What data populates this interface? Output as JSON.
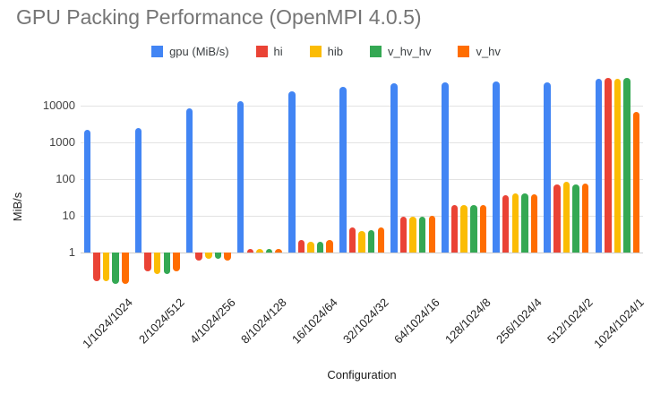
{
  "title": "GPU Packing Performance (OpenMPI 4.0.5)",
  "legend": [
    {
      "label": "gpu (MiB/s)",
      "color": "#4285F4"
    },
    {
      "label": "hi",
      "color": "#EA4335"
    },
    {
      "label": "hib",
      "color": "#FBBC04"
    },
    {
      "label": "v_hv_hv",
      "color": "#34A853"
    },
    {
      "label": "v_hv",
      "color": "#FF6D01"
    }
  ],
  "chart_data": {
    "type": "bar",
    "title": "GPU Packing Performance (OpenMPI 4.0.5)",
    "xlabel": "Configuration",
    "ylabel": "MiB/s",
    "y_scale": "log",
    "y_ticks": [
      1,
      10,
      100,
      1000,
      10000
    ],
    "ylim": [
      0.13,
      65000
    ],
    "grid": true,
    "legend_position": "top",
    "categories": [
      "1/1024/1024",
      "2/1024/512",
      "4/1024/256",
      "8/1024/128",
      "16/1024/64",
      "32/1024/32",
      "64/1024/16",
      "128/1024/8",
      "256/1024/4",
      "512/1024/2",
      "1024/1024/1"
    ],
    "series": [
      {
        "name": "gpu (MiB/s)",
        "color": "#4285F4",
        "values": [
          2200,
          2500,
          8500,
          13500,
          25000,
          33000,
          42000,
          45000,
          47000,
          45000,
          54000
        ]
      },
      {
        "name": "hi",
        "color": "#EA4335",
        "values": [
          0.17,
          0.31,
          0.62,
          1.3,
          2.2,
          4.8,
          9.4,
          20,
          38,
          74,
          59000
        ]
      },
      {
        "name": "hib",
        "color": "#FBBC04",
        "values": [
          0.17,
          0.27,
          0.68,
          1.25,
          2.05,
          4.0,
          9.4,
          20,
          42,
          85,
          55000
        ]
      },
      {
        "name": "v_hv_hv",
        "color": "#34A853",
        "values": [
          0.14,
          0.27,
          0.68,
          1.25,
          2.05,
          4.2,
          9.4,
          20,
          42,
          74,
          59000
        ]
      },
      {
        "name": "v_hv",
        "color": "#FF6D01",
        "values": [
          0.14,
          0.31,
          0.62,
          1.3,
          2.2,
          4.8,
          10.0,
          20,
          40,
          79,
          6900
        ]
      }
    ]
  }
}
